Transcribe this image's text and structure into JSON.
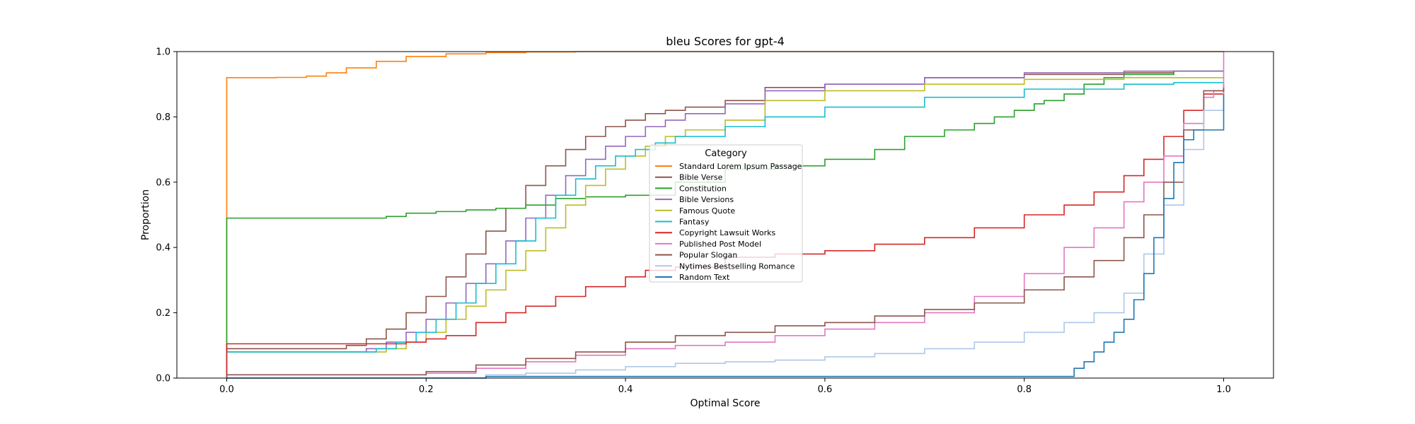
{
  "chart_data": {
    "type": "line",
    "step": true,
    "title": "bleu Scores for gpt-4",
    "xlabel": "Optimal Score",
    "ylabel": "Proportion",
    "xlim": [
      -0.05,
      1.05
    ],
    "ylim": [
      0.0,
      1.0
    ],
    "x_ticks": [
      0.0,
      0.2,
      0.4,
      0.6,
      0.8,
      1.0
    ],
    "x_tick_labels": [
      "0.0",
      "0.2",
      "0.4",
      "0.6",
      "0.8",
      "1.0"
    ],
    "y_ticks": [
      0.0,
      0.2,
      0.4,
      0.6,
      0.8,
      1.0
    ],
    "y_tick_labels": [
      "0.0",
      "0.2",
      "0.4",
      "0.6",
      "0.8",
      "1.0"
    ],
    "grid": false,
    "legend": {
      "title": "Category",
      "placement": "center"
    },
    "series": [
      {
        "name": "Standard Lorem Ipsum Passage",
        "color": "#ff7f0e",
        "x": [
          0.0,
          0.0,
          0.05,
          0.08,
          0.1,
          0.12,
          0.15,
          0.18,
          0.22,
          0.26,
          0.3,
          0.35,
          0.4,
          0.45,
          1.0,
          1.0
        ],
        "y": [
          0.0,
          0.92,
          0.921,
          0.925,
          0.935,
          0.95,
          0.97,
          0.985,
          0.993,
          0.997,
          0.999,
          1.0,
          1.0,
          1.0,
          1.0,
          1.0
        ]
      },
      {
        "name": "Bible Verse",
        "color": "#8c564b",
        "x": [
          0.0,
          0.0,
          0.1,
          0.12,
          0.14,
          0.16,
          0.18,
          0.2,
          0.22,
          0.24,
          0.26,
          0.28,
          0.3,
          0.32,
          0.34,
          0.36,
          0.38,
          0.4,
          0.42,
          0.44,
          0.46,
          0.5,
          0.54,
          0.6,
          0.7,
          0.8,
          0.9,
          0.95,
          1.0,
          1.0
        ],
        "y": [
          0.0,
          0.09,
          0.09,
          0.1,
          0.12,
          0.15,
          0.2,
          0.25,
          0.31,
          0.38,
          0.45,
          0.52,
          0.59,
          0.65,
          0.7,
          0.74,
          0.77,
          0.79,
          0.81,
          0.82,
          0.83,
          0.85,
          0.89,
          0.9,
          0.92,
          0.93,
          0.935,
          0.94,
          0.94,
          0.94
        ]
      },
      {
        "name": "Constitution",
        "color": "#2ca02c",
        "x": [
          0.0,
          0.0,
          0.15,
          0.16,
          0.18,
          0.21,
          0.24,
          0.27,
          0.3,
          0.33,
          0.36,
          0.4,
          0.45,
          0.5,
          0.55,
          0.6,
          0.65,
          0.68,
          0.72,
          0.75,
          0.77,
          0.79,
          0.81,
          0.82,
          0.84,
          0.86,
          0.88,
          0.9,
          0.95,
          1.0,
          1.0
        ],
        "y": [
          0.0,
          0.49,
          0.49,
          0.495,
          0.505,
          0.51,
          0.515,
          0.52,
          0.53,
          0.55,
          0.555,
          0.56,
          0.6,
          0.64,
          0.65,
          0.67,
          0.7,
          0.74,
          0.76,
          0.78,
          0.8,
          0.82,
          0.84,
          0.85,
          0.87,
          0.9,
          0.92,
          0.93,
          0.94,
          0.94,
          0.94
        ]
      },
      {
        "name": "Bible Versions",
        "color": "#9467bd",
        "x": [
          0.0,
          0.0,
          0.12,
          0.14,
          0.16,
          0.18,
          0.2,
          0.22,
          0.24,
          0.26,
          0.28,
          0.3,
          0.32,
          0.34,
          0.36,
          0.38,
          0.4,
          0.42,
          0.44,
          0.46,
          0.5,
          0.54,
          0.6,
          0.7,
          0.8,
          0.9,
          0.95,
          1.0,
          1.0
        ],
        "y": [
          0.0,
          0.08,
          0.08,
          0.09,
          0.11,
          0.14,
          0.18,
          0.23,
          0.29,
          0.35,
          0.42,
          0.49,
          0.56,
          0.62,
          0.67,
          0.71,
          0.74,
          0.77,
          0.79,
          0.81,
          0.84,
          0.88,
          0.9,
          0.92,
          0.935,
          0.94,
          0.94,
          0.94,
          0.94
        ]
      },
      {
        "name": "Famous Quote",
        "color": "#bcbd22",
        "x": [
          0.0,
          0.0,
          0.14,
          0.16,
          0.18,
          0.2,
          0.22,
          0.24,
          0.26,
          0.28,
          0.3,
          0.32,
          0.34,
          0.36,
          0.38,
          0.4,
          0.42,
          0.44,
          0.46,
          0.5,
          0.54,
          0.6,
          0.7,
          0.8,
          0.9,
          0.95,
          1.0,
          1.0
        ],
        "y": [
          0.0,
          0.08,
          0.08,
          0.09,
          0.11,
          0.14,
          0.18,
          0.22,
          0.27,
          0.33,
          0.39,
          0.46,
          0.53,
          0.59,
          0.64,
          0.68,
          0.71,
          0.74,
          0.76,
          0.79,
          0.85,
          0.88,
          0.9,
          0.915,
          0.92,
          0.92,
          0.92,
          0.92
        ]
      },
      {
        "name": "Fantasy",
        "color": "#17becf",
        "x": [
          0.0,
          0.0,
          0.13,
          0.15,
          0.17,
          0.19,
          0.21,
          0.23,
          0.25,
          0.27,
          0.29,
          0.31,
          0.33,
          0.35,
          0.37,
          0.39,
          0.41,
          0.43,
          0.45,
          0.5,
          0.54,
          0.6,
          0.7,
          0.8,
          0.9,
          0.95,
          1.0,
          1.0
        ],
        "y": [
          0.0,
          0.08,
          0.08,
          0.09,
          0.11,
          0.14,
          0.18,
          0.23,
          0.29,
          0.35,
          0.42,
          0.49,
          0.56,
          0.61,
          0.65,
          0.68,
          0.7,
          0.72,
          0.74,
          0.77,
          0.8,
          0.83,
          0.86,
          0.885,
          0.9,
          0.905,
          0.905,
          0.905
        ]
      },
      {
        "name": "Copyright Lawsuit Works",
        "color": "#d62728",
        "x": [
          0.0,
          0.0,
          0.15,
          0.18,
          0.2,
          0.22,
          0.25,
          0.28,
          0.3,
          0.33,
          0.36,
          0.4,
          0.42,
          0.45,
          0.5,
          0.55,
          0.6,
          0.65,
          0.7,
          0.75,
          0.8,
          0.84,
          0.87,
          0.9,
          0.92,
          0.94,
          0.96,
          0.98,
          1.0,
          1.0
        ],
        "y": [
          0.0,
          0.105,
          0.105,
          0.11,
          0.12,
          0.13,
          0.17,
          0.2,
          0.22,
          0.25,
          0.28,
          0.31,
          0.33,
          0.34,
          0.37,
          0.38,
          0.39,
          0.41,
          0.43,
          0.46,
          0.5,
          0.53,
          0.57,
          0.62,
          0.67,
          0.74,
          0.82,
          0.87,
          0.9,
          0.9
        ]
      },
      {
        "name": "Published Post Model",
        "color": "#e377c2",
        "x": [
          0.0,
          0.0,
          0.15,
          0.2,
          0.25,
          0.3,
          0.35,
          0.4,
          0.45,
          0.5,
          0.55,
          0.6,
          0.65,
          0.7,
          0.75,
          0.8,
          0.84,
          0.87,
          0.9,
          0.92,
          0.94,
          0.96,
          0.98,
          0.99,
          1.0,
          1.0
        ],
        "y": [
          0.0,
          0.01,
          0.01,
          0.015,
          0.03,
          0.05,
          0.07,
          0.09,
          0.1,
          0.11,
          0.13,
          0.15,
          0.17,
          0.2,
          0.25,
          0.32,
          0.4,
          0.46,
          0.54,
          0.6,
          0.68,
          0.78,
          0.86,
          0.88,
          1.0,
          1.0
        ]
      },
      {
        "name": "Popular Slogan",
        "color": "#8c564b",
        "x": [
          0.0,
          0.0,
          0.17,
          0.2,
          0.25,
          0.3,
          0.35,
          0.4,
          0.45,
          0.5,
          0.55,
          0.6,
          0.65,
          0.7,
          0.75,
          0.8,
          0.84,
          0.87,
          0.9,
          0.92,
          0.94,
          0.96,
          0.98,
          1.0,
          1.0
        ],
        "y": [
          0.0,
          0.01,
          0.01,
          0.02,
          0.04,
          0.06,
          0.08,
          0.11,
          0.13,
          0.14,
          0.16,
          0.17,
          0.19,
          0.21,
          0.23,
          0.27,
          0.31,
          0.36,
          0.43,
          0.5,
          0.6,
          0.76,
          0.88,
          0.89,
          0.89
        ]
      },
      {
        "name": "Nytimes Bestselling Romance",
        "color": "#aec7e8",
        "x": [
          0.0,
          0.0,
          0.23,
          0.26,
          0.3,
          0.35,
          0.4,
          0.45,
          0.5,
          0.55,
          0.6,
          0.65,
          0.7,
          0.75,
          0.8,
          0.84,
          0.87,
          0.9,
          0.92,
          0.94,
          0.96,
          0.98,
          1.0,
          1.0
        ],
        "y": [
          0.0,
          0.0,
          0.0,
          0.01,
          0.015,
          0.025,
          0.035,
          0.045,
          0.05,
          0.055,
          0.065,
          0.075,
          0.09,
          0.11,
          0.14,
          0.17,
          0.2,
          0.26,
          0.38,
          0.53,
          0.7,
          0.82,
          0.875,
          0.875
        ]
      },
      {
        "name": "Random Text",
        "color": "#1f77b4",
        "x": [
          0.0,
          0.0,
          0.26,
          0.84,
          0.85,
          0.86,
          0.87,
          0.88,
          0.89,
          0.9,
          0.91,
          0.92,
          0.93,
          0.94,
          0.95,
          0.96,
          0.97,
          0.98,
          0.99,
          1.0,
          1.0
        ],
        "y": [
          0.0,
          0.0,
          0.005,
          0.005,
          0.03,
          0.05,
          0.08,
          0.11,
          0.14,
          0.18,
          0.24,
          0.32,
          0.43,
          0.55,
          0.66,
          0.73,
          0.76,
          0.76,
          0.76,
          0.76,
          0.87
        ]
      }
    ]
  }
}
